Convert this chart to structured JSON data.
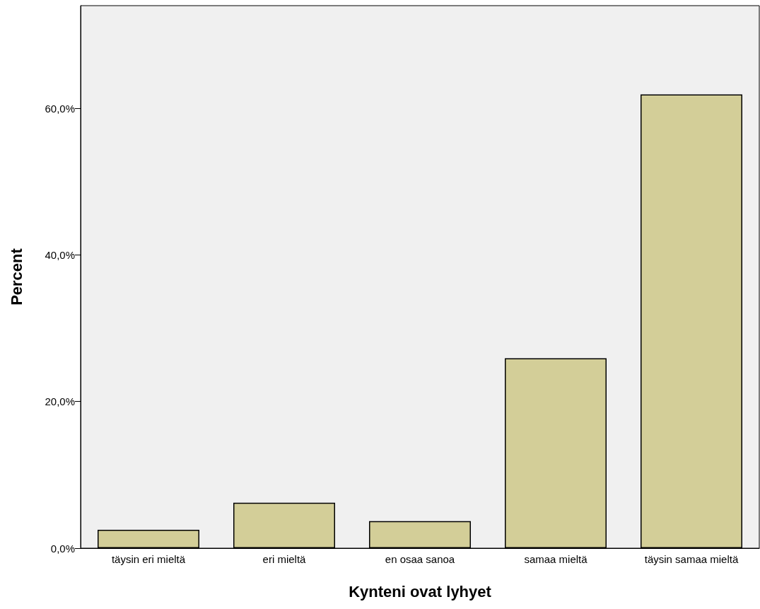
{
  "chart_data": {
    "type": "bar",
    "xlabel": "Kynteni ovat lyhyet",
    "ylabel": "Percent",
    "categories": [
      "täysin eri mieltä",
      "eri mieltä",
      "en osaa sanoa",
      "samaa mieltä",
      "täysin samaa mieltä"
    ],
    "values": [
      2.5,
      6.2,
      3.7,
      25.9,
      61.9
    ],
    "color": "#d3ce98",
    "ylim": [
      0,
      74
    ],
    "yticks": [
      {
        "value": 0,
        "label": "0,0%"
      },
      {
        "value": 20,
        "label": "20,0%"
      },
      {
        "value": 40,
        "label": "40,0%"
      },
      {
        "value": 60,
        "label": "60,0%"
      }
    ],
    "grid": false
  }
}
